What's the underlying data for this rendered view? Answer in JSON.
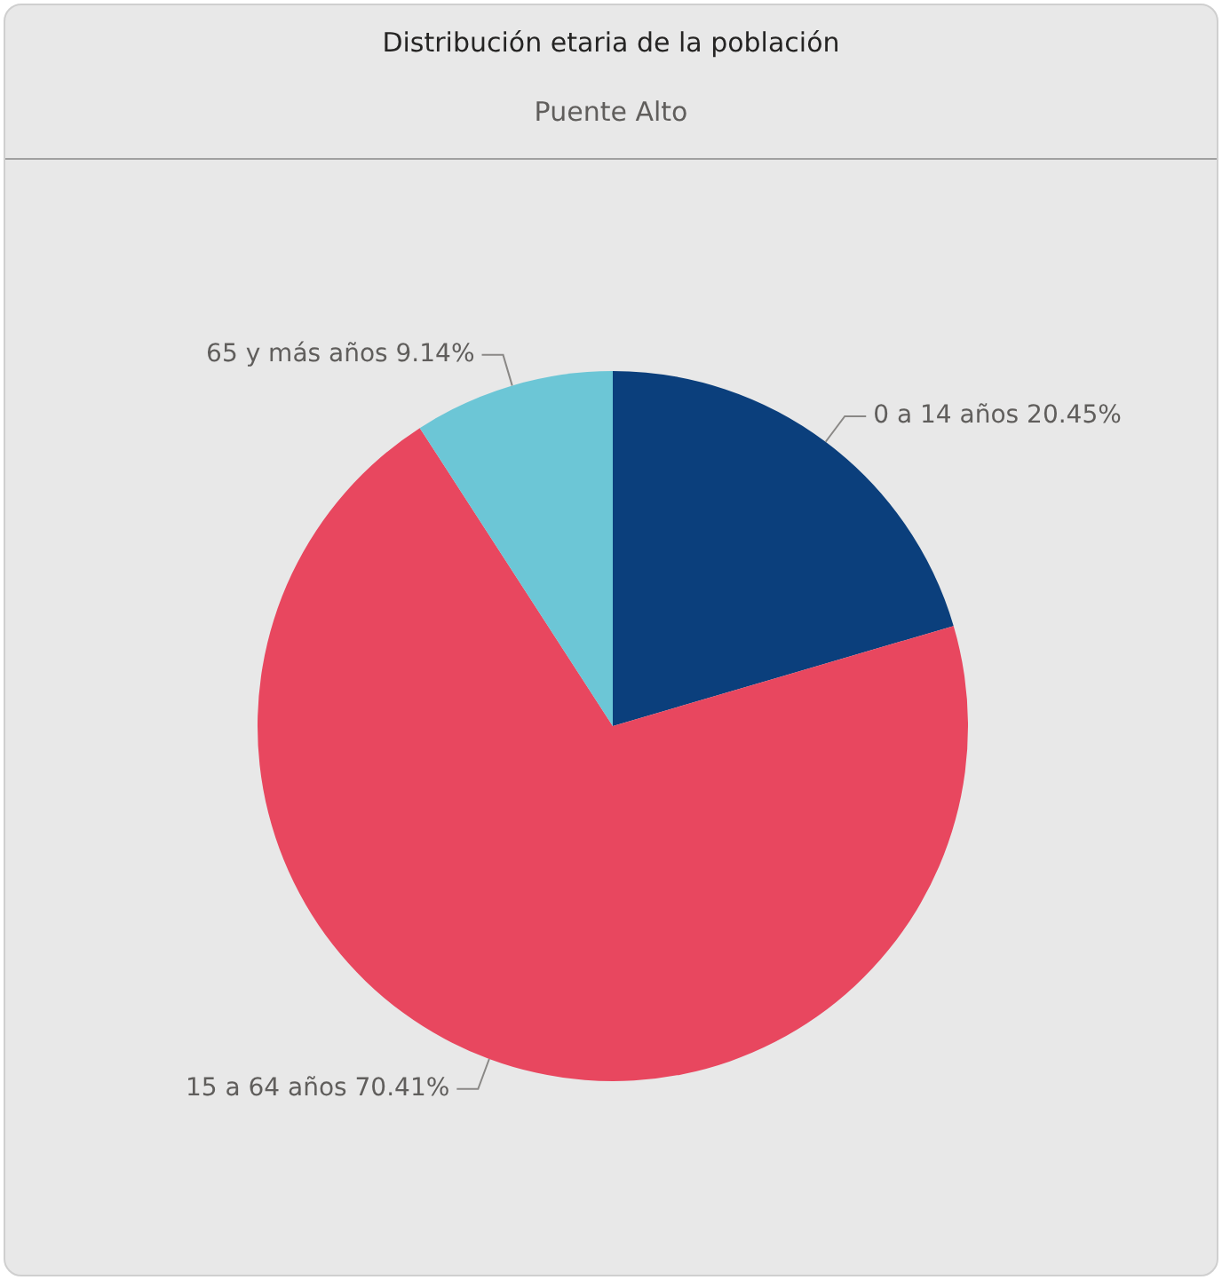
{
  "chart_data": {
    "type": "pie",
    "title": "Distribución etaria de la población",
    "subtitle": "Puente Alto",
    "categories": [
      "0 a 14 años",
      "15 a 64 años",
      "65 y más años"
    ],
    "values": [
      20.45,
      70.41,
      9.14
    ],
    "colors": [
      "#0b3f7c",
      "#e8475f",
      "#6cc6d6"
    ],
    "value_labels": [
      "20.45%",
      "70.41%",
      "9.14%"
    ],
    "legend": false
  }
}
